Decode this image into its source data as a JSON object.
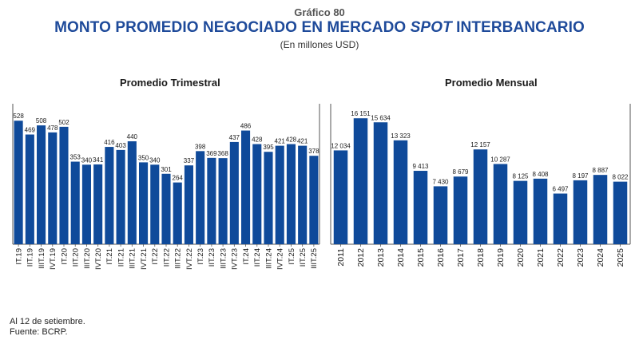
{
  "figure": {
    "label": "Gráfico 80",
    "title_pre": "MONTO PROMEDIO NEGOCIADO EN MERCADO ",
    "title_italic": "SPOT",
    "title_post": " INTERBANCARIO",
    "units": "(En millones USD)"
  },
  "colors": {
    "bar": "#0f4a9a",
    "axis": "#555555",
    "text": "#1a1a1a"
  },
  "chart_data": [
    {
      "type": "bar",
      "title": "Promedio Trimestral",
      "categories": [
        "IT.19",
        "IIT.19",
        "IIIT.19",
        "IVT.19",
        "IT.20",
        "IIT.20",
        "IIIT.20",
        "IVT.20",
        "IT.21",
        "IIT.21",
        "IIIT.21",
        "IVT.21",
        "IT.22",
        "IIT.22",
        "IIIT.22",
        "IVT.22",
        "IT.23",
        "IIT.23",
        "IIIT.23",
        "IVT.23",
        "IT.24",
        "IIT.24",
        "IIIT.24",
        "IVT.24",
        "IT.25",
        "IIT.25",
        "IIIT.25"
      ],
      "values": [
        528,
        469,
        508,
        478,
        502,
        353,
        340,
        341,
        416,
        403,
        440,
        350,
        340,
        301,
        264,
        337,
        398,
        369,
        368,
        437,
        486,
        428,
        395,
        421,
        428,
        421,
        378
      ],
      "labels": [
        "528",
        "469",
        "508",
        "478",
        "502",
        "353",
        "340",
        "341",
        "416",
        "403",
        "440",
        "350",
        "340",
        "301",
        "264",
        "337",
        "398",
        "369",
        "368",
        "437",
        "486",
        "428",
        "395",
        "421",
        "428",
        "421",
        "378"
      ],
      "ylim": [
        0,
        580
      ],
      "xlabel": "",
      "ylabel": ""
    },
    {
      "type": "bar",
      "title": "Promedio Mensual",
      "categories": [
        "2011",
        "2012",
        "2013",
        "2014",
        "2015",
        "2016",
        "2017",
        "2018",
        "2019",
        "2020",
        "2021",
        "2022",
        "2023",
        "2024",
        "2025"
      ],
      "values": [
        12034,
        16151,
        15634,
        13323,
        9413,
        7430,
        8679,
        12157,
        10287,
        8125,
        8408,
        6497,
        8197,
        8887,
        8022
      ],
      "labels": [
        "12 034",
        "16 151",
        "15 634",
        "13 323",
        "9 413",
        "7 430",
        "8 679",
        "12 157",
        "10 287",
        "8 125",
        "8 408",
        "6 497",
        "8 197",
        "8 887",
        "8 022"
      ],
      "ylim": [
        0,
        17400
      ],
      "xlabel": "",
      "ylabel": ""
    }
  ],
  "footnotes": {
    "date": "Al 12 de setiembre.",
    "source": "Fuente: BCRP."
  }
}
